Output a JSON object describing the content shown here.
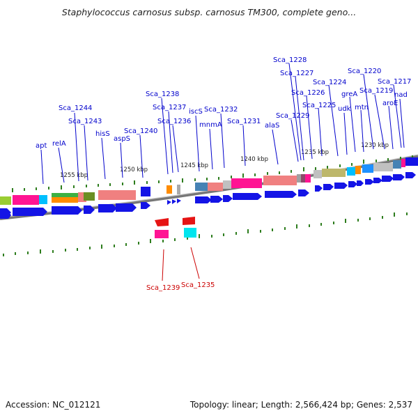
{
  "title": "Staphylococcus carnosus subsp. carnosus TM300, complete geno...",
  "footer": {
    "accession": "Accession: NC_012121",
    "topology": "Topology: linear; Length: 2,566,424 bp; Genes: 2,537"
  },
  "colors": {
    "label_fwd": "#0000cc",
    "label_rev": "#cc0000",
    "tick": "#2e7d1e",
    "backbone": "#888888",
    "gene_fwd": "#1414e6",
    "gene_rev": "#e61414"
  },
  "ticks": [
    "1255 kbp",
    "1250 kbp",
    "1245 kbp",
    "1240 kbp",
    "1235 kbp",
    "1230 kbp"
  ],
  "genes_upper": [
    "apt",
    "relA",
    "Sca_1244",
    "Sca_1243",
    "hisS",
    "aspS",
    "Sca_1240",
    "Sca_1238",
    "Sca_1237",
    "Sca_1236",
    "iscS",
    "mnmA",
    "Sca_1232",
    "Sca_1231",
    "alaS",
    "Sca_1229",
    "Sca_1228",
    "Sca_1227",
    "Sca_1226",
    "Sca_1225",
    "Sca_1224",
    "udk",
    "greA",
    "mtn",
    "Sca_1220",
    "Sca_1219",
    "aroE",
    "Sca_1217",
    "nad"
  ],
  "genes_lower": [
    "Sca_1239",
    "Sca_1235"
  ]
}
